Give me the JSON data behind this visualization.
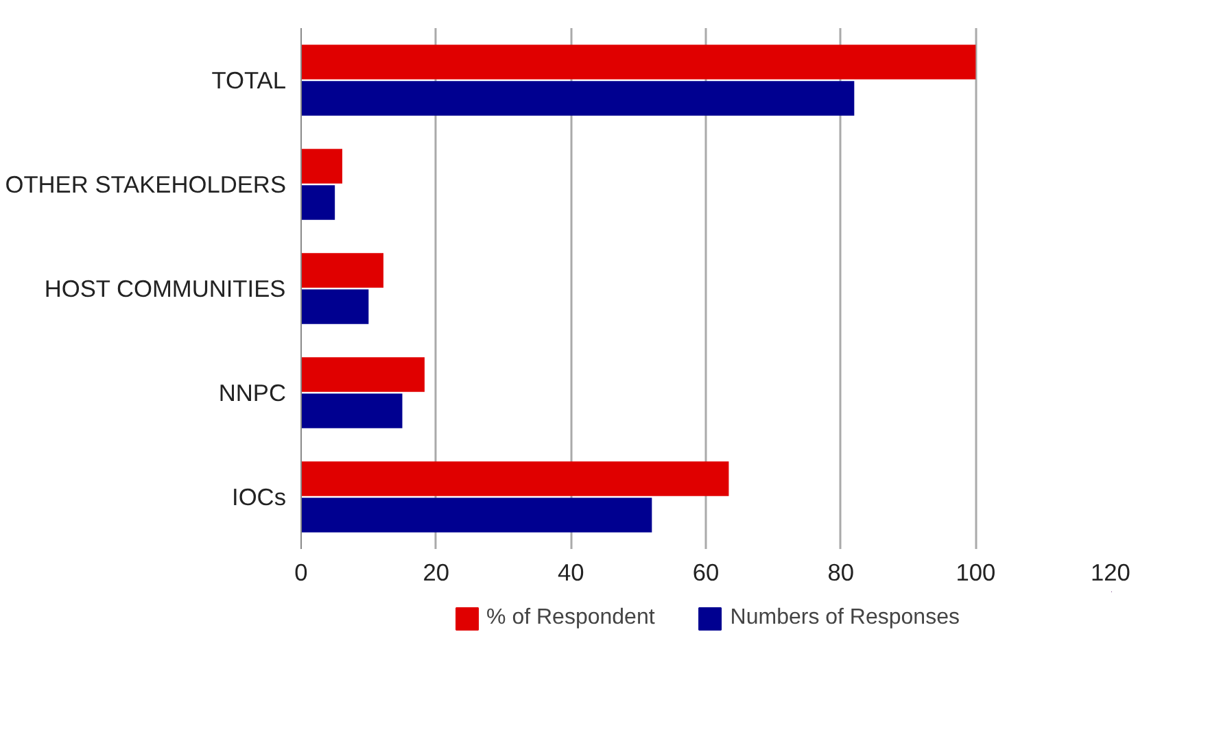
{
  "chart_data": {
    "type": "bar",
    "orientation": "horizontal",
    "categories": [
      "TOTAL",
      "OTHER STAKEHOLDERS",
      "HOST COMMUNITIES",
      "NNPC",
      "IOCs"
    ],
    "series": [
      {
        "name": "% of Respondent",
        "color": "#e00000",
        "values": [
          100,
          6.1,
          12.2,
          18.3,
          63.4
        ]
      },
      {
        "name": "Numbers of Responses",
        "color": "#000090",
        "values": [
          82,
          5,
          10,
          15,
          52
        ]
      }
    ],
    "xlim": [
      0,
      120
    ],
    "xticks": [
      0,
      20,
      40,
      60,
      80,
      100,
      120
    ],
    "grid": "x",
    "legend": "bottom"
  }
}
